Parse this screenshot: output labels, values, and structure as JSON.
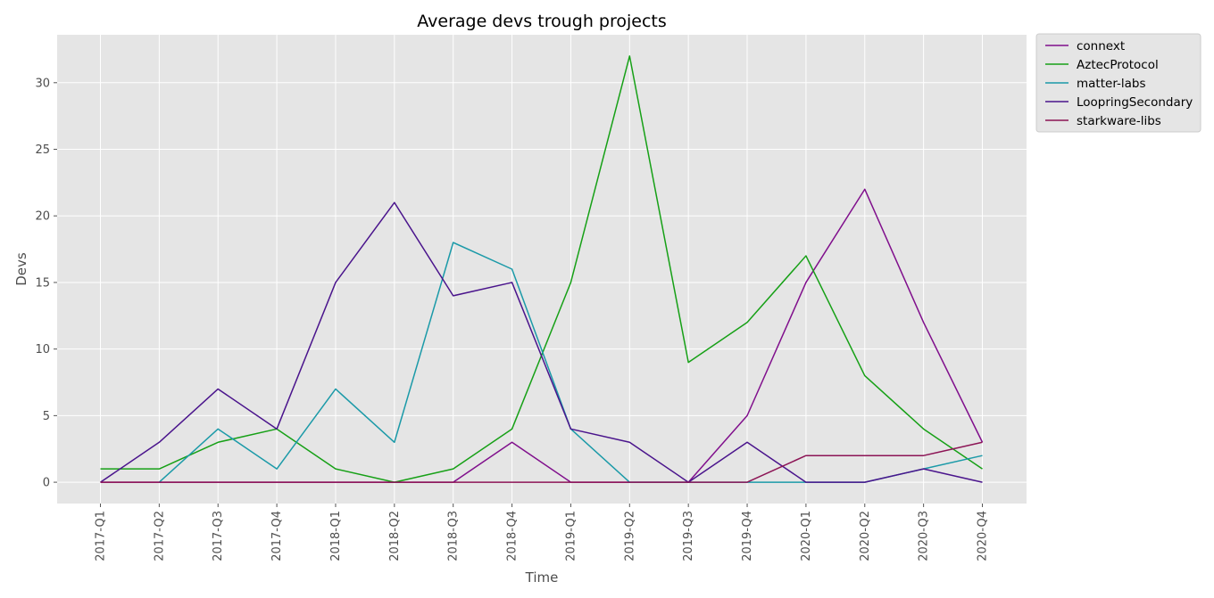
{
  "chart_data": {
    "type": "line",
    "title": "Average devs trough projects",
    "xlabel": "Time",
    "ylabel": "Devs",
    "categories": [
      "2017-Q1",
      "2017-Q2",
      "2017-Q3",
      "2017-Q4",
      "2018-Q1",
      "2018-Q2",
      "2018-Q3",
      "2018-Q4",
      "2019-Q1",
      "2019-Q2",
      "2019-Q3",
      "2019-Q4",
      "2020-Q1",
      "2020-Q2",
      "2020-Q3",
      "2020-Q4"
    ],
    "ylim": [
      -1.6,
      33.6
    ],
    "yticks": [
      0,
      5,
      10,
      15,
      20,
      25,
      30
    ],
    "grid": true,
    "legend_position": "upper-right-outside",
    "series": [
      {
        "name": "connext",
        "color": "#800f8c",
        "values": [
          0,
          0,
          0,
          0,
          0,
          0,
          0,
          3,
          0,
          0,
          0,
          5,
          15,
          22,
          12,
          3
        ]
      },
      {
        "name": "AztecProtocol",
        "color": "#16a016",
        "values": [
          1,
          1,
          3,
          4,
          1,
          0,
          1,
          4,
          15,
          32,
          9,
          12,
          17,
          8,
          4,
          1
        ]
      },
      {
        "name": "matter-labs",
        "color": "#1b9aa8",
        "values": [
          null,
          0,
          4,
          1,
          7,
          3,
          18,
          16,
          4,
          0,
          0,
          0,
          0,
          0,
          1,
          2
        ]
      },
      {
        "name": "LoopringSecondary",
        "color": "#4a148c",
        "values": [
          0,
          3,
          7,
          4,
          15,
          21,
          14,
          15,
          4,
          3,
          0,
          3,
          0,
          0,
          1,
          0
        ]
      },
      {
        "name": "starkware-libs",
        "color": "#8c1455",
        "values": [
          0,
          0,
          0,
          0,
          0,
          0,
          0,
          0,
          0,
          0,
          0,
          0,
          2,
          2,
          2,
          3
        ]
      }
    ]
  }
}
